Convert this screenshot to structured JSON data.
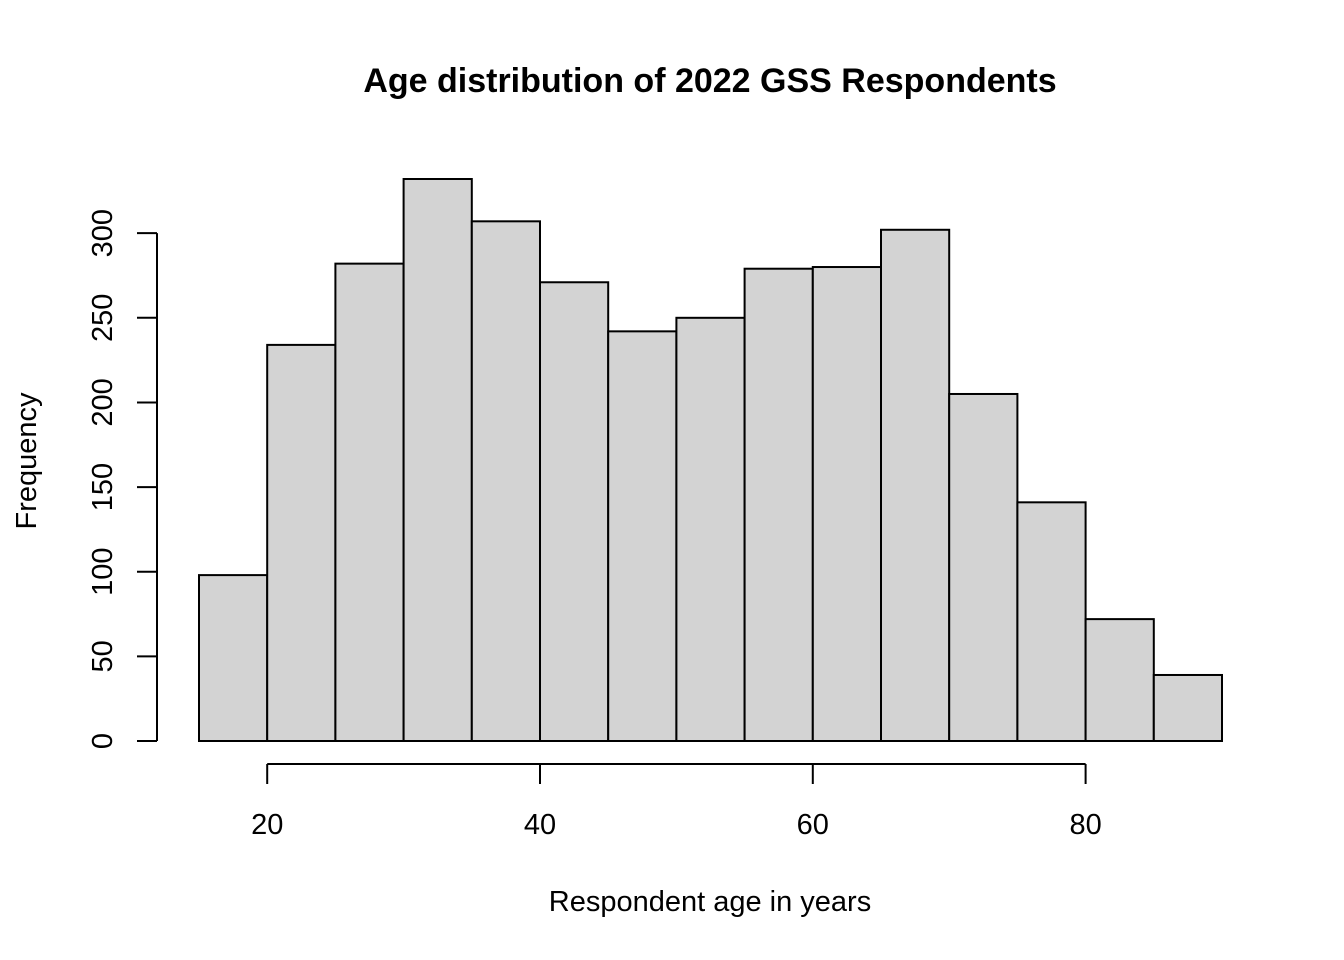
{
  "chart_data": {
    "type": "bar",
    "title": "Age distribution of 2022 GSS Respondents",
    "xlabel": "Respondent age in years",
    "ylabel": "Frequency",
    "bin_edges": [
      15,
      20,
      25,
      30,
      35,
      40,
      45,
      50,
      55,
      60,
      65,
      70,
      75,
      80,
      85,
      90
    ],
    "values": [
      98,
      234,
      282,
      332,
      307,
      271,
      242,
      250,
      279,
      280,
      302,
      205,
      141,
      72,
      39
    ],
    "xlim": [
      15,
      90
    ],
    "ylim": [
      0,
      332
    ],
    "x_ticks": [
      20,
      40,
      60,
      80
    ],
    "y_ticks": [
      0,
      50,
      100,
      150,
      200,
      250,
      300
    ],
    "bar_color": "#d3d3d3",
    "grid": false,
    "legend": "none"
  }
}
